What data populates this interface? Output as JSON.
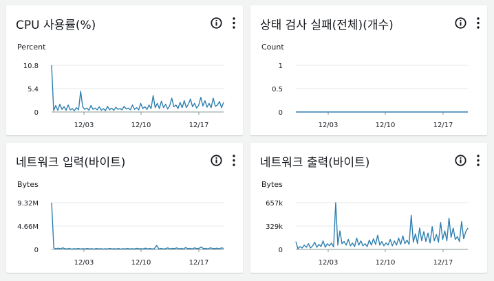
{
  "colors": {
    "line": "#2d7fb0",
    "grid": "#e6e8ea",
    "axis": "#879596",
    "panel_bg": "#ffffff",
    "page_bg": "#f2f3f3"
  },
  "icons": {
    "info": "info-icon",
    "menu": "more-vertical-icon"
  },
  "x_ticks": [
    "12/03",
    "12/10",
    "12/17"
  ],
  "panels": [
    {
      "title": "CPU 사용률(%)",
      "chart_data": {
        "type": "line",
        "ylabel": "Percent",
        "y_ticks": [
          "10.8",
          "5.4",
          "0"
        ],
        "ylim": [
          0,
          10.8
        ],
        "series": [
          {
            "values": [
              10.8,
              0.3,
              1.5,
              0.4,
              1.8,
              0.6,
              1.2,
              0.4,
              1.6,
              0.5,
              0.8,
              0.3,
              1.0,
              0.5,
              4.8,
              1.2,
              0.6,
              0.9,
              0.4,
              1.5,
              0.6,
              0.9,
              0.5,
              1.2,
              0.4,
              0.8,
              0.3,
              1.3,
              0.5,
              0.9,
              0.4,
              1.1,
              0.6,
              0.8,
              0.5,
              1.3,
              0.7,
              0.9,
              0.5,
              1.6,
              0.6,
              1.0,
              0.5,
              2.0,
              0.8,
              1.2,
              0.6,
              1.6,
              0.8,
              3.8,
              1.0,
              2.0,
              0.8,
              2.5,
              1.0,
              1.8,
              0.7,
              1.5,
              3.2,
              1.2,
              1.6,
              0.8,
              2.2,
              1.0,
              2.6,
              1.0,
              1.8,
              3.0,
              1.2,
              2.0,
              0.9,
              1.6,
              3.4,
              1.4,
              2.6,
              1.1,
              2.0,
              1.0,
              3.2,
              1.3,
              1.6,
              2.4,
              1.0,
              2.2
            ]
          }
        ]
      }
    },
    {
      "title": "상태 검사 실패(전체)(개수)",
      "chart_data": {
        "type": "line",
        "ylabel": "Count",
        "y_ticks": [
          "1",
          "0.5",
          "0"
        ],
        "ylim": [
          0,
          1
        ],
        "series": [
          {
            "values": [
              0,
              0,
              0,
              0,
              0,
              0,
              0,
              0,
              0,
              0,
              0,
              0,
              0,
              0,
              0,
              0,
              0,
              0,
              0,
              0
            ]
          }
        ]
      }
    },
    {
      "title": "네트워크 입력(바이트)",
      "chart_data": {
        "type": "line",
        "ylabel": "Bytes",
        "y_ticks": [
          "9.32M",
          "4.66M",
          "0"
        ],
        "ylim": [
          0,
          9.32
        ],
        "series": [
          {
            "values": [
              9.32,
              0.3,
              0.1,
              0.25,
              0.1,
              0.3,
              0.15,
              0.1,
              0.2,
              0.05,
              0.15,
              0.1,
              0.2,
              0.08,
              0.15,
              0.1,
              0.2,
              0.1,
              0.15,
              0.05,
              0.2,
              0.1,
              0.15,
              0.08,
              0.12,
              0.1,
              0.2,
              0.1,
              0.15,
              0.1,
              0.18,
              0.05,
              0.15,
              0.1,
              0.2,
              0.1,
              0.15,
              0.1,
              0.2,
              0.12,
              0.15,
              0.1,
              0.25,
              0.1,
              0.2,
              0.1,
              0.15,
              0.8,
              0.1,
              0.2,
              0.1,
              0.15,
              0.3,
              0.1,
              0.2,
              0.15,
              0.3,
              0.1,
              0.2,
              0.1,
              0.35,
              0.15,
              0.2,
              0.1,
              0.3,
              0.15,
              0.2,
              0.5,
              0.15,
              0.2,
              0.1,
              0.3,
              0.2,
              0.15,
              0.25,
              0.1,
              0.3,
              0.2
            ]
          }
        ]
      }
    },
    {
      "title": "네트워크 출력(바이트)",
      "chart_data": {
        "type": "line",
        "ylabel": "Bytes",
        "y_ticks": [
          "657k",
          "329k",
          "0"
        ],
        "ylim": [
          0,
          657
        ],
        "series": [
          {
            "values": [
              110,
              10,
              40,
              20,
              60,
              30,
              80,
              20,
              50,
              100,
              30,
              70,
              40,
              120,
              30,
              80,
              50,
              90,
              35,
              657,
              60,
              260,
              80,
              110,
              60,
              140,
              50,
              90,
              40,
              160,
              60,
              120,
              50,
              80,
              40,
              130,
              60,
              150,
              70,
              200,
              60,
              110,
              50,
              90,
              60,
              140,
              50,
              120,
              60,
              160,
              70,
              190,
              80,
              130,
              70,
              480,
              100,
              220,
              80,
              300,
              120,
              250,
              110,
              230,
              90,
              320,
              120,
              210,
              100,
              380,
              140,
              260,
              120,
              440,
              170,
              300,
              140,
              180,
              110,
              390,
              150,
              250,
              300
            ]
          }
        ]
      }
    }
  ]
}
